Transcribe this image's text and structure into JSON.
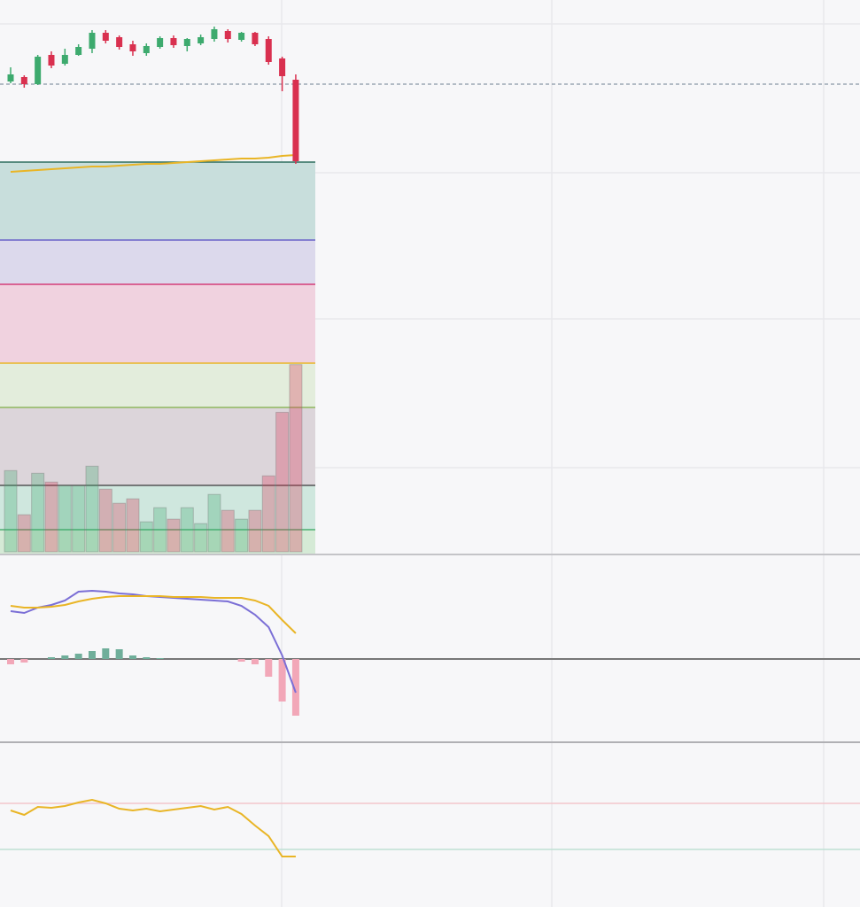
{
  "chart_data": [
    {
      "type": "candlestick",
      "ylim": [
        375,
        1000
      ],
      "open": [
        908,
        913,
        905,
        938,
        928,
        938,
        945,
        963,
        958,
        950,
        940,
        947,
        957,
        948,
        951,
        956,
        965,
        955,
        963,
        956,
        934,
        910
      ],
      "close": [
        916,
        905,
        936,
        926,
        938,
        947,
        963,
        954,
        947,
        942,
        948,
        957,
        949,
        956,
        958,
        967,
        956,
        963,
        950,
        930,
        914,
        818
      ],
      "high": [
        924,
        915,
        938,
        942,
        945,
        950,
        966,
        966,
        960,
        954,
        951,
        959,
        960,
        957,
        961,
        970,
        967,
        964,
        964,
        959,
        936,
        916
      ],
      "low": [
        906,
        901,
        904,
        923,
        926,
        937,
        940,
        951,
        944,
        937,
        937,
        945,
        946,
        942,
        949,
        953,
        952,
        953,
        948,
        927,
        897,
        815
      ],
      "up_color": "#3daa6e",
      "down_color": "#d9304f",
      "ma": {
        "color": "#e9b526",
        "values": [
          806,
          807,
          808,
          809,
          810,
          811,
          812,
          812,
          813,
          814,
          815,
          815,
          816,
          817,
          818,
          819,
          820,
          821,
          821,
          822,
          824,
          825
        ]
      },
      "price_line": 905,
      "volume": {
        "ylim": [
          0,
          625
        ],
        "values": [
          92,
          42,
          89,
          79,
          75,
          75,
          97,
          71,
          55,
          60,
          34,
          50,
          37,
          50,
          32,
          65,
          47,
          37,
          47,
          86,
          158,
          212
        ]
      },
      "levels": [
        {
          "value": 817,
          "color": "#2f6f5e",
          "fill": "#c8dedc"
        },
        {
          "value": 729,
          "color": "#6a62c8",
          "fill": "#dcd9ec"
        },
        {
          "value": 679,
          "color": "#d43d78",
          "fill": "#f0d2df"
        },
        {
          "value": 590,
          "color": "#e9b526",
          "fill": "#e3eddc"
        },
        {
          "value": 540,
          "color": "#8fb75e",
          "fill": "#dcd5da"
        },
        {
          "value": 452,
          "color": "#555555",
          "fill": "#cfe7de"
        },
        {
          "value": 402,
          "color": "#4caf72",
          "fill": "#d5ead6"
        }
      ]
    },
    {
      "type": "macd",
      "ylim": [
        -94,
        116
      ],
      "series": [
        {
          "color": "#7b6fd6",
          "values": [
            54,
            52,
            58,
            61,
            66,
            76,
            77,
            76,
            74,
            73,
            71,
            70,
            69,
            68,
            67,
            66,
            65,
            60,
            50,
            36,
            4,
            -38
          ]
        },
        {
          "color": "#e9b526",
          "values": [
            60,
            58,
            58,
            59,
            61,
            65,
            68,
            70,
            71,
            71,
            71,
            71,
            70,
            70,
            70,
            69,
            69,
            69,
            66,
            60,
            44,
            29
          ]
        }
      ],
      "histogram": {
        "up_color": "#6fae9a",
        "down_color": "#f2a7b8",
        "values": [
          -6,
          -4,
          0,
          2,
          4,
          6,
          9,
          12,
          11,
          4,
          2,
          1,
          0,
          0,
          0,
          0,
          0,
          -3,
          -6,
          -20,
          -48,
          -64
        ]
      }
    },
    {
      "type": "line",
      "ylim": [
        0,
        186
      ],
      "series": [
        {
          "color": "#e9b526",
          "values": [
            109,
            104,
            113,
            112,
            114,
            118,
            121,
            117,
            111,
            109,
            111,
            108,
            110,
            112,
            114,
            110,
            113,
            105,
            92,
            80,
            57,
            57
          ]
        }
      ],
      "levels": [
        {
          "value": 117,
          "color": "#f3c6cc"
        },
        {
          "value": 65,
          "color": "#bfe0d4"
        }
      ]
    }
  ]
}
